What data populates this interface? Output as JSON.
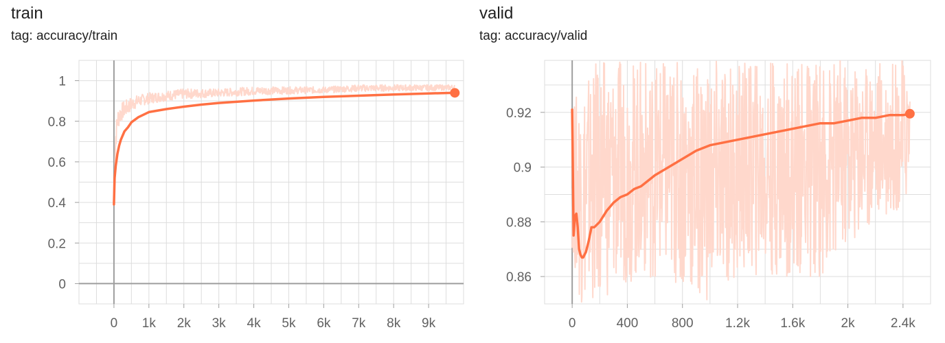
{
  "charts": [
    {
      "title": "train",
      "tag": "tag: accuracy/train",
      "x_ticks": [
        "0",
        "1k",
        "2k",
        "3k",
        "4k",
        "5k",
        "6k",
        "7k",
        "8k",
        "9k"
      ],
      "y_ticks": [
        "0",
        "0.2",
        "0.4",
        "0.6",
        "0.8",
        "1"
      ]
    },
    {
      "title": "valid",
      "tag": "tag: accuracy/valid",
      "x_ticks": [
        "0",
        "400",
        "800",
        "1.2k",
        "1.6k",
        "2k",
        "2.4k"
      ],
      "y_ticks": [
        "0.86",
        "0.88",
        "0.9",
        "0.92"
      ]
    }
  ],
  "colors": {
    "smoothed_line": "#ff7043",
    "raw_line": "#ffd8cc",
    "grid": "#dddddd",
    "axis": "#9e9e9e"
  },
  "chart_data": [
    {
      "type": "line",
      "title": "train",
      "subtitle": "tag: accuracy/train",
      "xlim": [
        -1000,
        10000
      ],
      "ylim": [
        -0.1,
        1.1
      ],
      "x_ticks": [
        0,
        1000,
        2000,
        3000,
        4000,
        5000,
        6000,
        7000,
        8000,
        9000
      ],
      "y_ticks": [
        0,
        0.2,
        0.4,
        0.6,
        0.8,
        1
      ],
      "grid": true,
      "series": [
        {
          "role": "smoothed",
          "x": [
            0,
            20,
            50,
            100,
            150,
            200,
            300,
            400,
            500,
            700,
            1000,
            1500,
            2000,
            2500,
            3000,
            4000,
            5000,
            6000,
            7000,
            8000,
            9000,
            9750
          ],
          "y": [
            0.39,
            0.52,
            0.58,
            0.64,
            0.68,
            0.71,
            0.75,
            0.77,
            0.795,
            0.82,
            0.845,
            0.86,
            0.872,
            0.882,
            0.89,
            0.902,
            0.912,
            0.92,
            0.926,
            0.932,
            0.937,
            0.94
          ]
        },
        {
          "role": "raw",
          "x": [
            0,
            50,
            100,
            150,
            200,
            300,
            400,
            500,
            700,
            1000,
            1500,
            2000,
            2500,
            3000,
            4000,
            5000,
            6000,
            7000,
            8000,
            9000,
            9750
          ],
          "y_min": [
            0.39,
            0.5,
            0.6,
            0.65,
            0.68,
            0.72,
            0.74,
            0.76,
            0.8,
            0.82,
            0.84,
            0.85,
            0.86,
            0.87,
            0.88,
            0.89,
            0.9,
            0.905,
            0.91,
            0.915,
            0.92
          ],
          "y_max": [
            0.45,
            0.78,
            0.86,
            0.88,
            0.89,
            0.9,
            0.91,
            0.92,
            0.93,
            0.94,
            0.95,
            0.96,
            0.96,
            0.96,
            0.97,
            0.97,
            0.97,
            0.98,
            0.98,
            0.98,
            0.98
          ]
        }
      ]
    },
    {
      "type": "line",
      "title": "valid",
      "subtitle": "tag: accuracy/valid",
      "xlim": [
        -200,
        2600
      ],
      "ylim": [
        0.85,
        0.939
      ],
      "x_ticks": [
        0,
        400,
        800,
        1200,
        1600,
        2000,
        2400
      ],
      "y_ticks": [
        0.86,
        0.88,
        0.9,
        0.92
      ],
      "grid": true,
      "series": [
        {
          "role": "smoothed",
          "x": [
            0,
            5,
            10,
            20,
            30,
            40,
            50,
            60,
            70,
            80,
            90,
            100,
            120,
            140,
            160,
            200,
            250,
            300,
            350,
            400,
            450,
            500,
            600,
            700,
            800,
            900,
            1000,
            1100,
            1200,
            1300,
            1400,
            1500,
            1600,
            1700,
            1800,
            1900,
            2000,
            2100,
            2200,
            2300,
            2400,
            2450
          ],
          "y": [
            0.921,
            0.9,
            0.875,
            0.882,
            0.883,
            0.878,
            0.87,
            0.868,
            0.867,
            0.867,
            0.868,
            0.869,
            0.873,
            0.878,
            0.878,
            0.88,
            0.884,
            0.887,
            0.889,
            0.89,
            0.892,
            0.893,
            0.897,
            0.9,
            0.903,
            0.906,
            0.908,
            0.909,
            0.91,
            0.911,
            0.912,
            0.913,
            0.914,
            0.915,
            0.916,
            0.916,
            0.917,
            0.918,
            0.918,
            0.919,
            0.919,
            0.9195
          ]
        },
        {
          "role": "raw",
          "x": [
            0,
            50,
            100,
            200,
            300,
            400,
            600,
            800,
            1000,
            1200,
            1400,
            1600,
            1800,
            2000,
            2200,
            2400,
            2450
          ],
          "y_min": [
            0.87,
            0.85,
            0.85,
            0.85,
            0.855,
            0.858,
            0.86,
            0.855,
            0.85,
            0.86,
            0.86,
            0.86,
            0.86,
            0.87,
            0.88,
            0.885,
            0.89
          ],
          "y_max": [
            0.922,
            0.93,
            0.935,
            0.939,
            0.939,
            0.939,
            0.939,
            0.939,
            0.939,
            0.939,
            0.939,
            0.939,
            0.939,
            0.939,
            0.939,
            0.939,
            0.939
          ]
        }
      ]
    }
  ]
}
